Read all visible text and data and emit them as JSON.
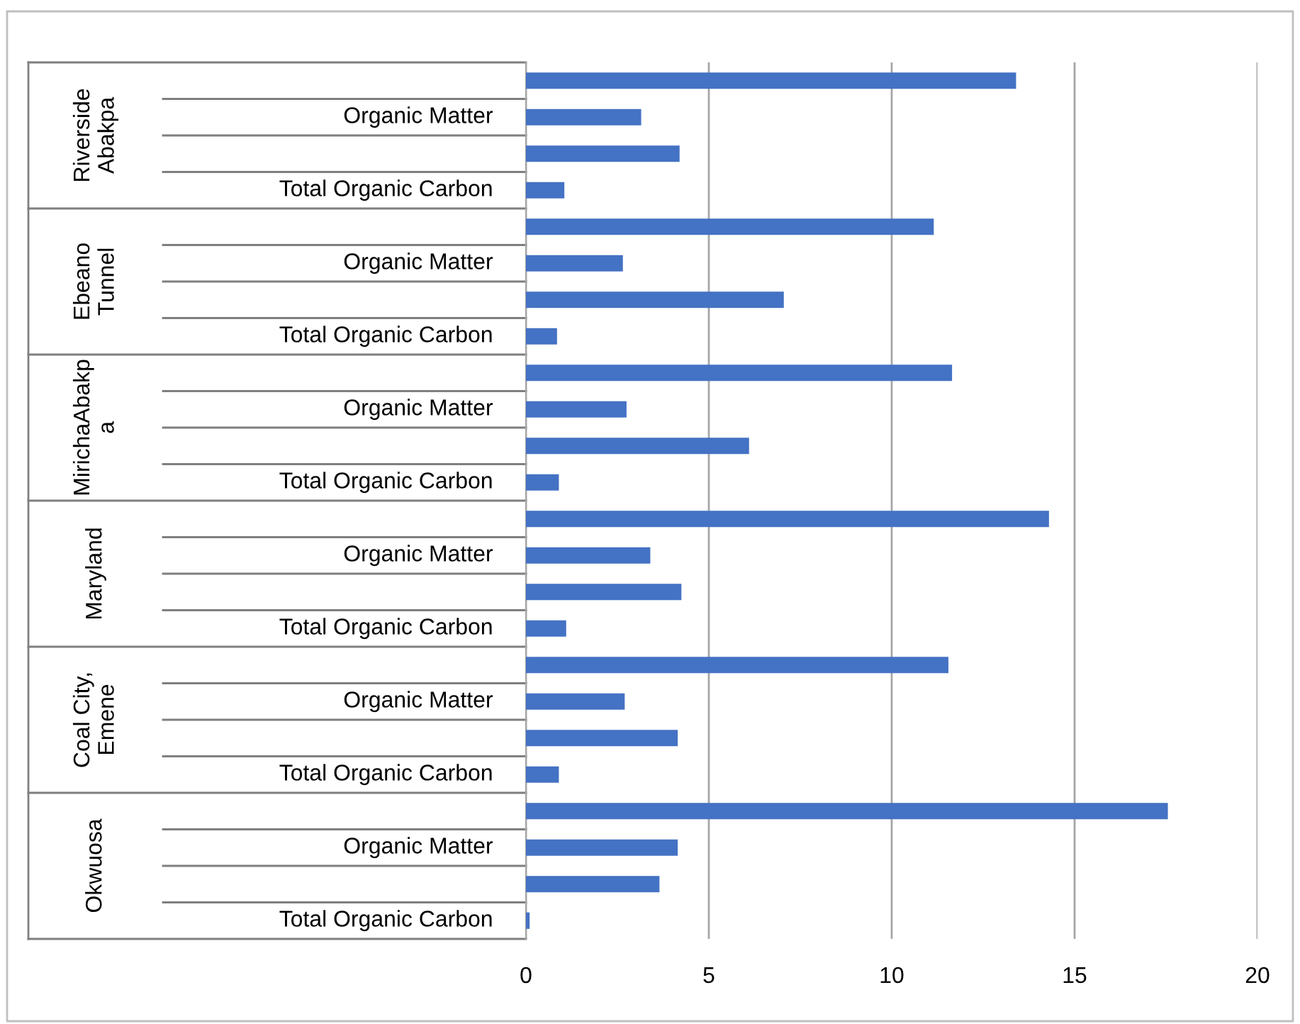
{
  "chart_data": {
    "type": "bar",
    "orientation": "horizontal",
    "categories": [
      null,
      "Organic Matter",
      null,
      "Total Organic Carbon",
      null,
      "Organic Matter",
      null,
      "Total Organic Carbon",
      null,
      "Organic Matter",
      null,
      "Total Organic Carbon",
      null,
      "Organic Matter",
      null,
      "Total Organic Carbon",
      null,
      "Organic Matter",
      null,
      "Total Organic Carbon",
      null,
      "Organic Matter",
      null,
      "Total Organic Carbon"
    ],
    "values": [
      13.4,
      3.15,
      4.2,
      1.05,
      11.15,
      2.65,
      7.05,
      0.85,
      11.65,
      2.75,
      6.1,
      0.9,
      14.3,
      3.4,
      4.25,
      1.1,
      11.55,
      2.7,
      4.15,
      0.9,
      17.55,
      4.15,
      3.65,
      0.1
    ],
    "color": "#4472c4",
    "annotations": [
      "Riverside Abakpa",
      "Ebeano Tunnel",
      "MirichaAbakpa",
      "Maryland",
      "Coal City, Emene",
      "Okwuosa"
    ],
    "xlim": [
      0,
      20
    ],
    "xticks": [
      0,
      5,
      10,
      15,
      20
    ],
    "grid": "x"
  }
}
